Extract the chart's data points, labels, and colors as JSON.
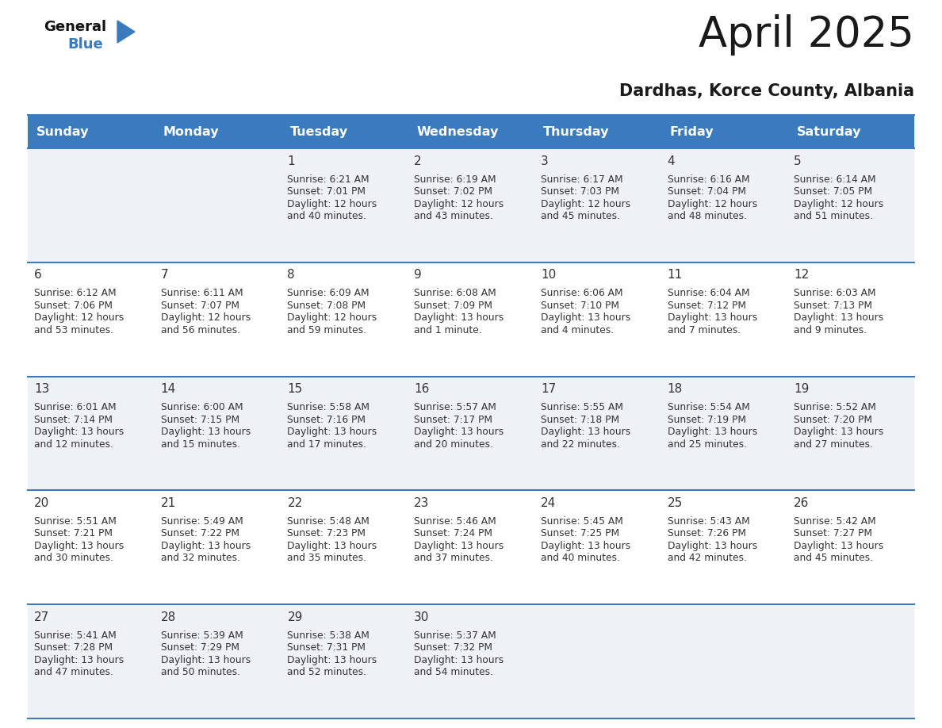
{
  "title": "April 2025",
  "subtitle": "Dardhas, Korce County, Albania",
  "header_bg_color": "#3a7abf",
  "header_text_color": "#ffffff",
  "day_names": [
    "Sunday",
    "Monday",
    "Tuesday",
    "Wednesday",
    "Thursday",
    "Friday",
    "Saturday"
  ],
  "cell_bg_even": "#eef2f7",
  "cell_bg_odd": "#ffffff",
  "cell_border_color": "#3a7abf",
  "title_color": "#1a1a1a",
  "subtitle_color": "#1a1a1a",
  "text_color": "#333333",
  "logo_general_color": "#111111",
  "logo_blue_color": "#3a7abf",
  "logo_triangle_color": "#3a7abf",
  "days": [
    {
      "day": 1,
      "col": 2,
      "row": 0,
      "sunrise": "6:21 AM",
      "sunset": "7:01 PM",
      "daylight_line1": "Daylight: 12 hours",
      "daylight_line2": "and 40 minutes."
    },
    {
      "day": 2,
      "col": 3,
      "row": 0,
      "sunrise": "6:19 AM",
      "sunset": "7:02 PM",
      "daylight_line1": "Daylight: 12 hours",
      "daylight_line2": "and 43 minutes."
    },
    {
      "day": 3,
      "col": 4,
      "row": 0,
      "sunrise": "6:17 AM",
      "sunset": "7:03 PM",
      "daylight_line1": "Daylight: 12 hours",
      "daylight_line2": "and 45 minutes."
    },
    {
      "day": 4,
      "col": 5,
      "row": 0,
      "sunrise": "6:16 AM",
      "sunset": "7:04 PM",
      "daylight_line1": "Daylight: 12 hours",
      "daylight_line2": "and 48 minutes."
    },
    {
      "day": 5,
      "col": 6,
      "row": 0,
      "sunrise": "6:14 AM",
      "sunset": "7:05 PM",
      "daylight_line1": "Daylight: 12 hours",
      "daylight_line2": "and 51 minutes."
    },
    {
      "day": 6,
      "col": 0,
      "row": 1,
      "sunrise": "6:12 AM",
      "sunset": "7:06 PM",
      "daylight_line1": "Daylight: 12 hours",
      "daylight_line2": "and 53 minutes."
    },
    {
      "day": 7,
      "col": 1,
      "row": 1,
      "sunrise": "6:11 AM",
      "sunset": "7:07 PM",
      "daylight_line1": "Daylight: 12 hours",
      "daylight_line2": "and 56 minutes."
    },
    {
      "day": 8,
      "col": 2,
      "row": 1,
      "sunrise": "6:09 AM",
      "sunset": "7:08 PM",
      "daylight_line1": "Daylight: 12 hours",
      "daylight_line2": "and 59 minutes."
    },
    {
      "day": 9,
      "col": 3,
      "row": 1,
      "sunrise": "6:08 AM",
      "sunset": "7:09 PM",
      "daylight_line1": "Daylight: 13 hours",
      "daylight_line2": "and 1 minute."
    },
    {
      "day": 10,
      "col": 4,
      "row": 1,
      "sunrise": "6:06 AM",
      "sunset": "7:10 PM",
      "daylight_line1": "Daylight: 13 hours",
      "daylight_line2": "and 4 minutes."
    },
    {
      "day": 11,
      "col": 5,
      "row": 1,
      "sunrise": "6:04 AM",
      "sunset": "7:12 PM",
      "daylight_line1": "Daylight: 13 hours",
      "daylight_line2": "and 7 minutes."
    },
    {
      "day": 12,
      "col": 6,
      "row": 1,
      "sunrise": "6:03 AM",
      "sunset": "7:13 PM",
      "daylight_line1": "Daylight: 13 hours",
      "daylight_line2": "and 9 minutes."
    },
    {
      "day": 13,
      "col": 0,
      "row": 2,
      "sunrise": "6:01 AM",
      "sunset": "7:14 PM",
      "daylight_line1": "Daylight: 13 hours",
      "daylight_line2": "and 12 minutes."
    },
    {
      "day": 14,
      "col": 1,
      "row": 2,
      "sunrise": "6:00 AM",
      "sunset": "7:15 PM",
      "daylight_line1": "Daylight: 13 hours",
      "daylight_line2": "and 15 minutes."
    },
    {
      "day": 15,
      "col": 2,
      "row": 2,
      "sunrise": "5:58 AM",
      "sunset": "7:16 PM",
      "daylight_line1": "Daylight: 13 hours",
      "daylight_line2": "and 17 minutes."
    },
    {
      "day": 16,
      "col": 3,
      "row": 2,
      "sunrise": "5:57 AM",
      "sunset": "7:17 PM",
      "daylight_line1": "Daylight: 13 hours",
      "daylight_line2": "and 20 minutes."
    },
    {
      "day": 17,
      "col": 4,
      "row": 2,
      "sunrise": "5:55 AM",
      "sunset": "7:18 PM",
      "daylight_line1": "Daylight: 13 hours",
      "daylight_line2": "and 22 minutes."
    },
    {
      "day": 18,
      "col": 5,
      "row": 2,
      "sunrise": "5:54 AM",
      "sunset": "7:19 PM",
      "daylight_line1": "Daylight: 13 hours",
      "daylight_line2": "and 25 minutes."
    },
    {
      "day": 19,
      "col": 6,
      "row": 2,
      "sunrise": "5:52 AM",
      "sunset": "7:20 PM",
      "daylight_line1": "Daylight: 13 hours",
      "daylight_line2": "and 27 minutes."
    },
    {
      "day": 20,
      "col": 0,
      "row": 3,
      "sunrise": "5:51 AM",
      "sunset": "7:21 PM",
      "daylight_line1": "Daylight: 13 hours",
      "daylight_line2": "and 30 minutes."
    },
    {
      "day": 21,
      "col": 1,
      "row": 3,
      "sunrise": "5:49 AM",
      "sunset": "7:22 PM",
      "daylight_line1": "Daylight: 13 hours",
      "daylight_line2": "and 32 minutes."
    },
    {
      "day": 22,
      "col": 2,
      "row": 3,
      "sunrise": "5:48 AM",
      "sunset": "7:23 PM",
      "daylight_line1": "Daylight: 13 hours",
      "daylight_line2": "and 35 minutes."
    },
    {
      "day": 23,
      "col": 3,
      "row": 3,
      "sunrise": "5:46 AM",
      "sunset": "7:24 PM",
      "daylight_line1": "Daylight: 13 hours",
      "daylight_line2": "and 37 minutes."
    },
    {
      "day": 24,
      "col": 4,
      "row": 3,
      "sunrise": "5:45 AM",
      "sunset": "7:25 PM",
      "daylight_line1": "Daylight: 13 hours",
      "daylight_line2": "and 40 minutes."
    },
    {
      "day": 25,
      "col": 5,
      "row": 3,
      "sunrise": "5:43 AM",
      "sunset": "7:26 PM",
      "daylight_line1": "Daylight: 13 hours",
      "daylight_line2": "and 42 minutes."
    },
    {
      "day": 26,
      "col": 6,
      "row": 3,
      "sunrise": "5:42 AM",
      "sunset": "7:27 PM",
      "daylight_line1": "Daylight: 13 hours",
      "daylight_line2": "and 45 minutes."
    },
    {
      "day": 27,
      "col": 0,
      "row": 4,
      "sunrise": "5:41 AM",
      "sunset": "7:28 PM",
      "daylight_line1": "Daylight: 13 hours",
      "daylight_line2": "and 47 minutes."
    },
    {
      "day": 28,
      "col": 1,
      "row": 4,
      "sunrise": "5:39 AM",
      "sunset": "7:29 PM",
      "daylight_line1": "Daylight: 13 hours",
      "daylight_line2": "and 50 minutes."
    },
    {
      "day": 29,
      "col": 2,
      "row": 4,
      "sunrise": "5:38 AM",
      "sunset": "7:31 PM",
      "daylight_line1": "Daylight: 13 hours",
      "daylight_line2": "and 52 minutes."
    },
    {
      "day": 30,
      "col": 3,
      "row": 4,
      "sunrise": "5:37 AM",
      "sunset": "7:32 PM",
      "daylight_line1": "Daylight: 13 hours",
      "daylight_line2": "and 54 minutes."
    }
  ]
}
